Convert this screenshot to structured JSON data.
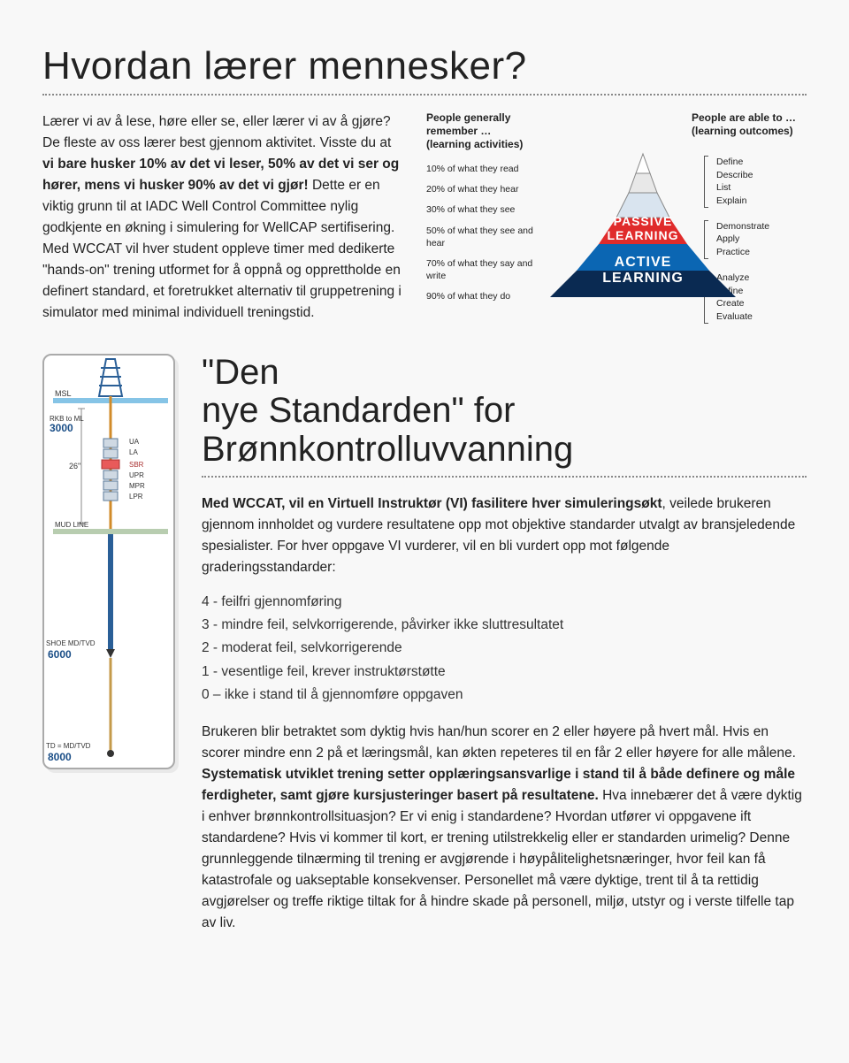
{
  "title": "Hvordan lærer mennesker?",
  "intro": {
    "p1a": "Lærer vi av å lese, høre eller se, eller lærer vi av å gjøre? De fleste av oss lærer best gjennom aktivitet. Visste du at ",
    "p1b": "vi bare husker 10% av det vi leser, 50% av det vi ser og hører, mens vi husker 90% av det vi gjør!",
    "p1c": " Dette er en viktig grunn til at IADC Well Control Committee nylig godkjente en økning i simulering for WellCAP sertifisering. Med WCCAT vil hver student oppleve timer med dedikerte \"hands-on\" trening utformet for å oppnå og opprettholde en definert standard, et foretrukket alternativ til gruppetrening i simulator med minimal individuell treningstid."
  },
  "pyramid": {
    "left_head_l1": "People generally",
    "left_head_l2": "remember …",
    "left_head_l3": "(learning activities)",
    "right_head_l1": "People are able to …",
    "right_head_l2": "(learning outcomes)",
    "left_items": [
      "10% of what they read",
      "20% of what they hear",
      "30% of what they see",
      "50% of what they see and hear",
      "70% of what they say and write",
      "90% of what they do"
    ],
    "right_groups": [
      [
        "Define",
        "Describe",
        "List",
        "Explain"
      ],
      [
        "Demonstrate",
        "Apply",
        "Practice"
      ],
      [
        "Analyze",
        "Define",
        "Create",
        "Evaluate"
      ]
    ],
    "passive_label": "PASSIVE LEARNING",
    "active_label": "ACTIVE LEARNING",
    "colors": {
      "tier1": "#ffffff",
      "tier2": "#e8e8e8",
      "tier3": "#d9e4ef",
      "tier4": "#e02b2b",
      "tier5": "#0b66b3",
      "tier6": "#0a2a52"
    }
  },
  "subtitle_a": "\"Den",
  "subtitle_b": "nye Standarden\" for",
  "subtitle_c": "Brønnkontrolluvvanning",
  "s2": {
    "intro_a": "Med WCCAT, vil en Virtuell Instruktør (VI) fasilitere hver simuleringsøkt",
    "intro_b": ", veilede brukeren gjennom innholdet og vurdere resultatene opp mot objektive standarder utvalgt av bransjeledende spesialister. For hver oppgave VI vurderer, vil en bli vurdert opp mot følgende graderingsstandarder:",
    "grades": [
      "4 - feilfri gjennomføring",
      "3 - mindre feil, selvkorrigerende, påvirker ikke sluttresultatet",
      "2 - moderat feil, selvkorrigerende",
      "1 - vesentlige feil, krever instruktørstøtte",
      "0 – ikke i stand til å gjennomføre oppgaven"
    ],
    "out_a": "Brukeren blir betraktet som dyktig hvis han/hun scorer en 2 eller høyere på hvert mål. Hvis en scorer mindre enn 2 på et læringsmål, kan økten repeteres til en får 2 eller høyere for alle målene. ",
    "out_b": "Systematisk utviklet trening setter opplæringsansvarlige i stand til å både definere og måle ferdigheter, samt gjøre kursjusteringer basert på resultatene. ",
    "out_c": "Hva innebærer det å være dyktig i enhver brønnkontrollsituasjon? Er vi enig i standardene? Hvordan utfører vi oppgavene ift standardene? Hvis vi kommer til kort, er trening utilstrekkelig eller er standarden urimelig? Denne grunnleggende tilnærming til trening er avgjørende i høypålitelighetsnæringer, hvor feil kan få katastrofale og uakseptable konsekvenser. Personellet må være dyktige, trent til å ta rettidig avgjørelser og treffe riktige tiltak for å hindre skade på personell, miljø, utstyr og i verste tilfelle tap av liv."
  },
  "well_labels": {
    "msl": "MSL",
    "rkb": "RKB to ML",
    "rkb_val": "3000",
    "depth26": "26\"",
    "ua": "UA",
    "la": "LA",
    "sbr": "SBR",
    "upr": "UPR",
    "mpr": "MPR",
    "lpr": "LPR",
    "mudline": "MUD LINE",
    "shoe": "SHOE MD/TVD",
    "shoe_val": "6000",
    "td": "TD = MD/TVD",
    "td_val": "8000"
  }
}
